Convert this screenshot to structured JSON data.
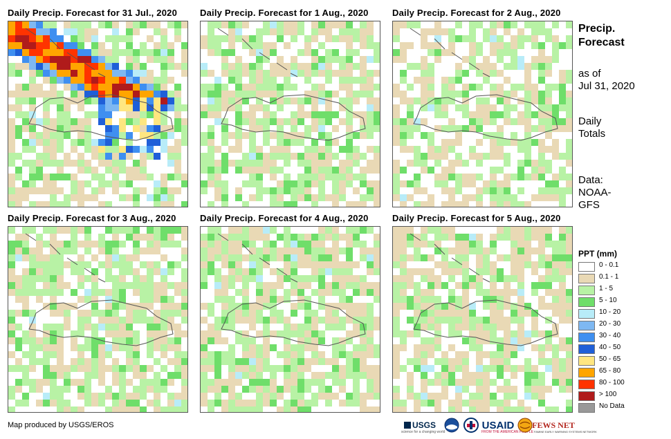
{
  "panels": [
    {
      "title": "Daily Precip. Forecast for 31 Jul., 2020"
    },
    {
      "title": "Daily Precip. Forecast for 1 Aug., 2020"
    },
    {
      "title": "Daily Precip. Forecast for 2 Aug., 2020"
    },
    {
      "title": "Daily Precip. Forecast for 3 Aug., 2020"
    },
    {
      "title": "Daily Precip. Forecast for 4 Aug., 2020"
    },
    {
      "title": "Daily Precip. Forecast for 5 Aug., 2020"
    }
  ],
  "side": {
    "title_line1": "Precip.",
    "title_line2": "Forecast",
    "asof_line1": "as of",
    "asof_line2": "Jul 31, 2020",
    "totals_line1": "Daily",
    "totals_line2": "Totals",
    "data_line1": "Data:",
    "data_line2": "NOAA-",
    "data_line3": "GFS"
  },
  "legend": {
    "title": "PPT (mm)",
    "items": [
      {
        "label": "0 - 0.1",
        "color": "#ffffff"
      },
      {
        "label": "0.1 - 1",
        "color": "#e9d9b5"
      },
      {
        "label": "1 - 5",
        "color": "#b8f2a5"
      },
      {
        "label": "5 - 10",
        "color": "#6fde6a"
      },
      {
        "label": "10 - 20",
        "color": "#b8ecf8"
      },
      {
        "label": "20 - 30",
        "color": "#7eb8f2"
      },
      {
        "label": "30 - 40",
        "color": "#3f8ff0"
      },
      {
        "label": "40 - 50",
        "color": "#1f5fd8"
      },
      {
        "label": "50 - 65",
        "color": "#ffe680"
      },
      {
        "label": "65 - 80",
        "color": "#ffa500"
      },
      {
        "label": "80 - 100",
        "color": "#ff3300"
      },
      {
        "label": "> 100",
        "color": "#b01b1b"
      },
      {
        "label": "No Data",
        "color": "#999999"
      }
    ]
  },
  "credit": "Map produced by USGS/EROS",
  "logos": {
    "usgs": "USGS",
    "usgs_tagline": "science for a changing world",
    "usaid": "USAID",
    "usaid_tagline": "FROM THE AMERICAN PEOPLE",
    "fewsnet": "FEWS NET",
    "fewsnet_tagline": "FAMINE EARLY WARNING SYSTEMS NETWORK"
  }
}
